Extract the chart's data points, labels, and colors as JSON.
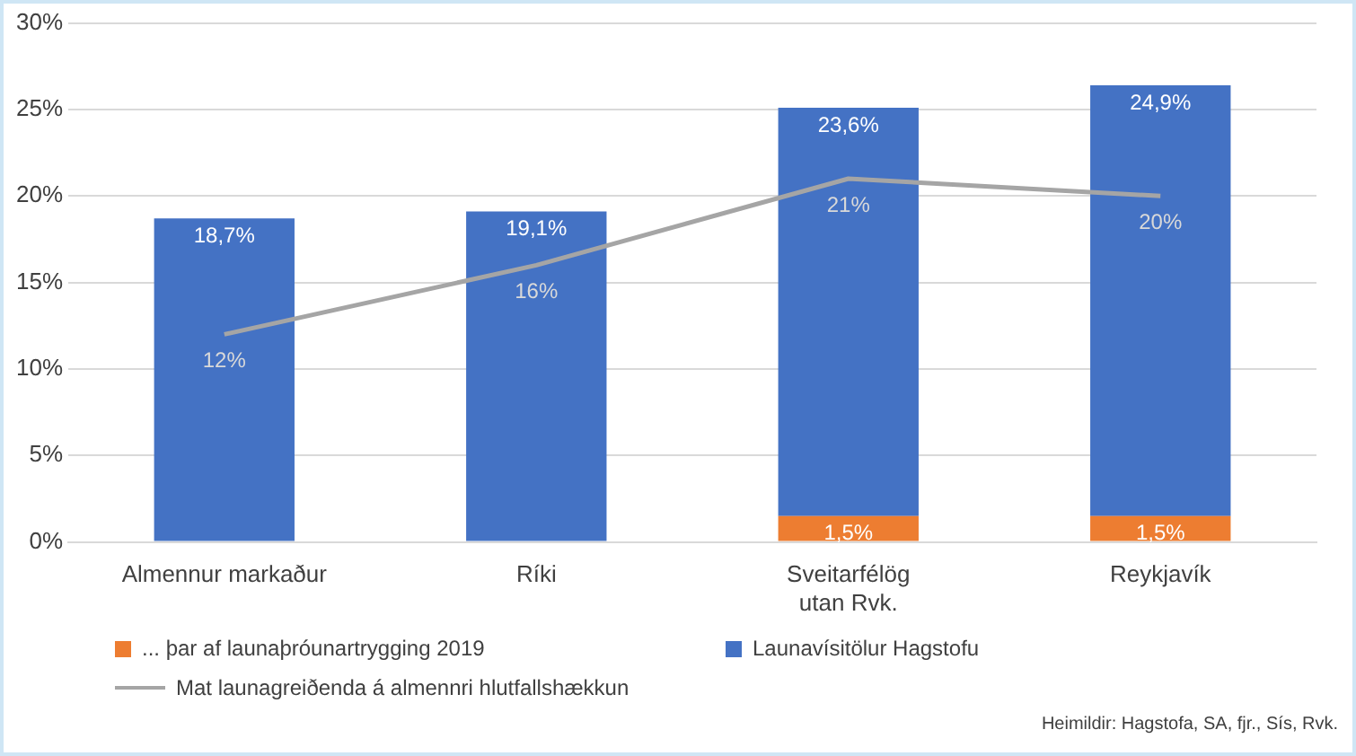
{
  "chart_data": {
    "type": "bar",
    "stacked": true,
    "categories": [
      "Almennur markaður",
      "Ríki",
      "Sveitarfélög\nutan Rvk.",
      "Reykjavík"
    ],
    "series": [
      {
        "name": "... þar af launaþróunartrygging 2019",
        "color": "#ed7d31",
        "values": [
          null,
          null,
          1.5,
          1.5
        ],
        "value_labels": [
          null,
          null,
          "1,5%",
          "1,5%"
        ]
      },
      {
        "name": "Launavísitölur Hagstofu",
        "color": "#4472c4",
        "values": [
          18.7,
          19.1,
          23.6,
          24.9
        ],
        "value_labels": [
          "18,7%",
          "19,1%",
          "23,6%",
          "24,9%"
        ]
      },
      {
        "name": "Mat launagreiðenda á almennri hlutfallshækkun",
        "type": "line",
        "color": "#a5a5a5",
        "values": [
          12,
          16,
          21,
          20
        ],
        "value_labels": [
          "12%",
          "16%",
          "21%",
          "20%"
        ],
        "marker": "none"
      }
    ],
    "ylim": [
      0,
      30
    ],
    "yticks": [
      {
        "value": 0,
        "label": "0%"
      },
      {
        "value": 5,
        "label": "5%"
      },
      {
        "value": 10,
        "label": "10%"
      },
      {
        "value": 15,
        "label": "15%"
      },
      {
        "value": 20,
        "label": "20%"
      },
      {
        "value": 25,
        "label": "25%"
      },
      {
        "value": 30,
        "label": "30%"
      }
    ],
    "grid": "y",
    "legend": "bottom",
    "annotations": [
      "Heimildir: Hagstofa, SA, fjr., Sís, Rvk."
    ]
  }
}
